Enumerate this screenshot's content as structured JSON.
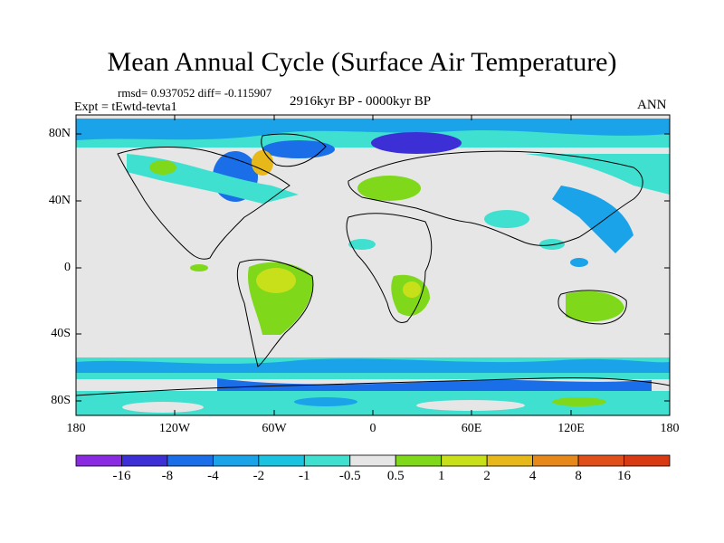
{
  "title": "Mean Annual Cycle (Surface Air Temperature)",
  "stats": "rmsd= 0.937052 diff= -0.115907",
  "experiment": "Expt = tEwtd-tevta1",
  "period": "2916kyr BP - 0000kyr BP",
  "season": "ANN",
  "lat_labels": [
    "80N",
    "40N",
    "0",
    "40S",
    "80S"
  ],
  "lon_labels": [
    "180",
    "120W",
    "60W",
    "0",
    "60E",
    "120E",
    "180"
  ],
  "colorbar": {
    "labels": [
      "-16",
      "-8",
      "-4",
      "-2",
      "-1",
      "-0.5",
      "0.5",
      "1",
      "2",
      "4",
      "8",
      "16"
    ],
    "colors": [
      "#8a2be2",
      "#3c2fd6",
      "#1a6ee8",
      "#1aa3e8",
      "#1ac4e0",
      "#3fe0d0",
      "#e6e6e6",
      "#7fd81a",
      "#c8e01a",
      "#e6b81a",
      "#e6891a",
      "#e04e1a",
      "#d83a14"
    ]
  },
  "palette": {
    "neutral": "#e6e6e6",
    "cool_light": "#3fe0d0",
    "cool": "#1aa3e8",
    "cool_mid": "#1a6ee8",
    "cool_dark": "#3c2fd6",
    "warm_light": "#7fd81a",
    "warm": "#c8e01a",
    "warm_mid": "#e6b81a"
  }
}
